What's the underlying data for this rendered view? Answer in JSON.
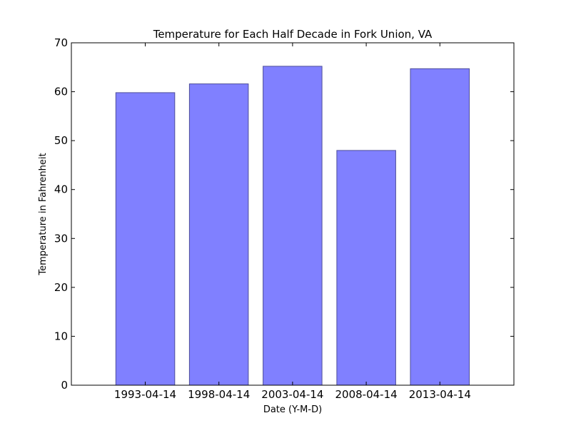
{
  "chart_data": {
    "type": "bar",
    "title": "Temperature for Each Half Decade in Fork Union, VA",
    "xlabel": "Date (Y-M-D)",
    "ylabel": "Temperature in Fahrenheit",
    "categories": [
      "1993-04-14",
      "1998-04-14",
      "2003-04-14",
      "2008-04-14",
      "2013-04-14"
    ],
    "values": [
      59.8,
      61.6,
      65.2,
      48.0,
      64.7
    ],
    "ylim": [
      0,
      70
    ],
    "yticks": [
      0,
      10,
      20,
      30,
      40,
      50,
      60,
      70
    ],
    "bar_color": "#8080ff",
    "bar_edge_color": "#4d4d99",
    "grid": false,
    "legend": "none"
  }
}
